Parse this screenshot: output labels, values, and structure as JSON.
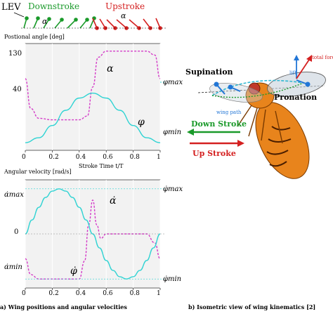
{
  "top_strip": {
    "lev": "LEV",
    "downstroke": "Downstroke",
    "upstroke": "Upstroke",
    "alpha": "α"
  },
  "chart_top": {
    "title": "Postional angle [deg]",
    "ytick_130": "130",
    "ytick_40": "40",
    "xticks": [
      "0",
      "0.2",
      "0.4",
      "0.6",
      "0.8",
      "1"
    ],
    "xlabel": "Stroke Time t/T",
    "right_max": "φmax",
    "right_min": "φmin",
    "alpha_label": "α",
    "phi_label": "φ"
  },
  "chart_bottom": {
    "title": "Angular velocity [rad/s]",
    "y_alpha_max": "α̇max",
    "y_zero": "0",
    "y_alpha_min": "α̇min",
    "xticks": [
      "0",
      "0.2",
      "0.4",
      "0.6",
      "0.8",
      "1"
    ],
    "right_max": "φ̇max",
    "right_min": "φ̇min",
    "alpha_dot_label": "α̇",
    "phi_dot_label": "φ̇"
  },
  "captions": {
    "a": "a) Wing positions and angular velocities",
    "b": "b) Isometric view of wing kinematics [2]"
  },
  "fly": {
    "supination": "Supination",
    "pronation": "Pronation",
    "lift": "lift",
    "total_force": "total force",
    "wing_path": "wing path",
    "down_stroke": "Down Stroke",
    "up_stroke": "Up Stroke"
  },
  "colors": {
    "phi": "#2fd3d3",
    "alpha": "#d43cc8",
    "down": "#1a9a2a",
    "up": "#d42020",
    "fly_body": "#e8841c"
  },
  "chart_data": [
    {
      "type": "line",
      "title": "Postional angle [deg]",
      "xlabel": "Stroke Time t/T",
      "ylabel": "",
      "xlim": [
        0,
        1
      ],
      "ylim": [
        0,
        140
      ],
      "series": [
        {
          "name": "α",
          "x": [
            0,
            0.04,
            0.1,
            0.2,
            0.3,
            0.4,
            0.46,
            0.5,
            0.54,
            0.6,
            0.7,
            0.8,
            0.9,
            0.96,
            1
          ],
          "y": [
            94,
            55,
            42,
            40,
            40,
            40,
            45,
            83,
            122,
            130,
            130,
            130,
            130,
            125,
            94
          ]
        },
        {
          "name": "φ",
          "x": [
            0,
            0.1,
            0.2,
            0.3,
            0.4,
            0.5,
            0.6,
            0.7,
            0.8,
            0.9,
            1
          ],
          "y": [
            10,
            16.5,
            32.5,
            52.5,
            68.5,
            75,
            68.5,
            52.5,
            32.5,
            16.5,
            10
          ]
        }
      ]
    },
    {
      "type": "line",
      "title": "Angular velocity [rad/s]",
      "xlabel": "",
      "ylabel": "",
      "xlim": [
        0,
        1
      ],
      "ylim": [
        -1.2,
        1.2
      ],
      "series": [
        {
          "name": "α̇",
          "x": [
            0,
            0.04,
            0.1,
            0.4,
            0.44,
            0.47,
            0.5,
            0.53,
            0.56,
            0.6,
            0.9,
            0.96,
            1
          ],
          "y": [
            -0.55,
            -0.9,
            -1,
            -1,
            -0.6,
            0.2,
            0.75,
            0.2,
            -0.1,
            0,
            0,
            -0.2,
            -0.55
          ]
        },
        {
          "name": "φ̇",
          "x": [
            0,
            0.05,
            0.1,
            0.15,
            0.2,
            0.25,
            0.3,
            0.35,
            0.4,
            0.45,
            0.5,
            0.55,
            0.6,
            0.65,
            0.7,
            0.75,
            0.8,
            0.85,
            0.9,
            0.95,
            1
          ],
          "y": [
            0,
            0.31,
            0.59,
            0.81,
            0.95,
            1,
            0.95,
            0.81,
            0.59,
            0.31,
            0,
            -0.31,
            -0.59,
            -0.81,
            -0.95,
            -1,
            -0.95,
            -0.81,
            -0.59,
            -0.31,
            0
          ]
        }
      ]
    }
  ]
}
